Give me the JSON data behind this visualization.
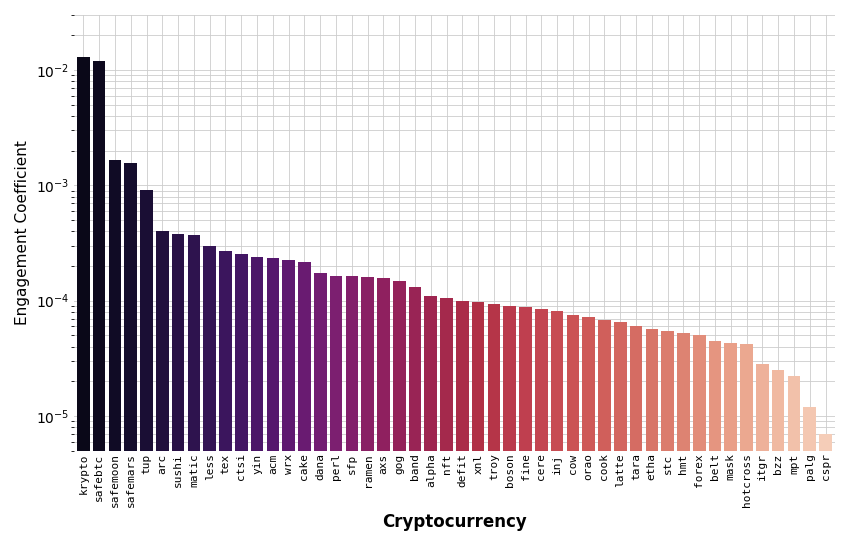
{
  "categories": [
    "krypto",
    "safebtc",
    "safemoon",
    "safemars",
    "tup",
    "arc",
    "sushi",
    "matic",
    "less",
    "tex",
    "ctsi",
    "yin",
    "acm",
    "wrx",
    "cake",
    "dana",
    "perl",
    "sfp",
    "ramen",
    "axs",
    "gog",
    "band",
    "alpha",
    "nft",
    "defit",
    "xnl",
    "troy",
    "boson",
    "fine",
    "cere",
    "inj",
    "cow",
    "orao",
    "cook",
    "latte",
    "tara",
    "etha",
    "stc",
    "hmt",
    "forex",
    "belt",
    "mask",
    "hotcross",
    "itgr",
    "bzz",
    "mpt",
    "palg",
    "cspr"
  ],
  "values": [
    0.013,
    0.012,
    0.00165,
    0.00155,
    0.00092,
    0.0004,
    0.00038,
    0.00037,
    0.000295,
    0.00027,
    0.000255,
    0.00024,
    0.000232,
    0.000225,
    0.000218,
    0.000175,
    0.000165,
    0.000163,
    0.00016,
    0.000156,
    0.000148,
    0.000132,
    0.00011,
    0.000106,
    0.0001,
    9.7e-05,
    9.3e-05,
    9e-05,
    8.8e-05,
    8.5e-05,
    8.2e-05,
    7.5e-05,
    7.2e-05,
    6.8e-05,
    6.5e-05,
    6e-05,
    5.7e-05,
    5.5e-05,
    5.2e-05,
    5e-05,
    4.5e-05,
    4.3e-05,
    4.2e-05,
    2.8e-05,
    2.5e-05,
    2.2e-05,
    1.2e-05,
    7e-06
  ],
  "ylabel": "Engagement Coefficient",
  "xlabel": "Cryptocurrency",
  "background_color": "#ffffff",
  "grid_color": "#cccccc",
  "ylim_min": 5e-06,
  "ylim_max": 0.03
}
